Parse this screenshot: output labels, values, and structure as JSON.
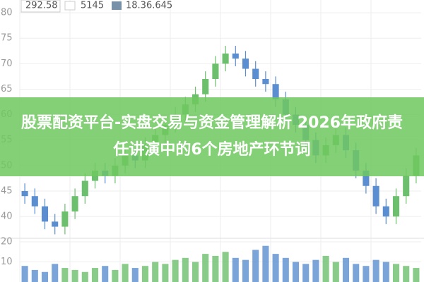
{
  "chart_data": {
    "type": "candlestick",
    "title": "股票配资平台-实盘交易与资金管理解析 2026年政府责任讲演中的6个房地产环节词",
    "header_values": [
      "292.58",
      "5145",
      "18.36.645"
    ],
    "open": [
      45,
      44,
      42,
      39,
      38,
      41,
      44,
      47,
      49,
      48,
      50,
      52,
      51,
      54,
      56,
      58,
      60,
      62,
      64,
      67,
      70,
      72,
      71,
      69,
      67,
      66,
      63,
      60,
      58,
      55,
      52,
      54,
      56,
      53,
      49,
      46,
      42,
      40,
      44,
      48
    ],
    "high": [
      46.5,
      45.5,
      43.5,
      40.5,
      42.5,
      45.5,
      48.5,
      50.5,
      50.5,
      51.5,
      53.5,
      53.5,
      55.5,
      57.5,
      59.5,
      61.5,
      63.5,
      65.5,
      68.5,
      71.5,
      73.5,
      73.5,
      72.5,
      70.5,
      68.5,
      67.5,
      64.5,
      61.5,
      59.5,
      56.5,
      55.5,
      57.5,
      57.5,
      54.5,
      50.5,
      47.5,
      43.5,
      45.5,
      49.5,
      53.5
    ],
    "low": [
      42.5,
      40.5,
      37.5,
      36.5,
      36.5,
      39.5,
      42.5,
      45.5,
      46.5,
      46.5,
      48.5,
      49.5,
      49.5,
      52.5,
      54.5,
      56.5,
      58.5,
      60.5,
      62.5,
      65.5,
      68.5,
      69.5,
      67.5,
      65.5,
      64.5,
      61.5,
      58.5,
      56.5,
      53.5,
      50.5,
      50.5,
      52.5,
      51.5,
      47.5,
      44.5,
      40.5,
      38.5,
      38.5,
      42.5,
      46.5
    ],
    "close": [
      44,
      42,
      39,
      38,
      41,
      44,
      47,
      49,
      48,
      50,
      52,
      51,
      54,
      56,
      58,
      60,
      62,
      64,
      67,
      70,
      72,
      71,
      69,
      67,
      66,
      63,
      60,
      58,
      55,
      52,
      54,
      56,
      53,
      49,
      46,
      42,
      40,
      44,
      48,
      52
    ],
    "volume": [
      8,
      6,
      5,
      9,
      7,
      6,
      5,
      7,
      8,
      6,
      9,
      7,
      8,
      10,
      9,
      11,
      12,
      10,
      14,
      13,
      15,
      12,
      11,
      16,
      18,
      14,
      12,
      10,
      9,
      11,
      13,
      10,
      12,
      9,
      8,
      11,
      10,
      9,
      8,
      7
    ],
    "up_color": "#6cbf6c",
    "down_color": "#5a8ed0",
    "ylim": [
      36,
      82.5
    ],
    "yticks": [
      80,
      75,
      70,
      65,
      60,
      55,
      50,
      45,
      40
    ],
    "volume_ylim": [
      0,
      20
    ],
    "volume_yticks": [
      10,
      20
    ],
    "grid": true
  }
}
